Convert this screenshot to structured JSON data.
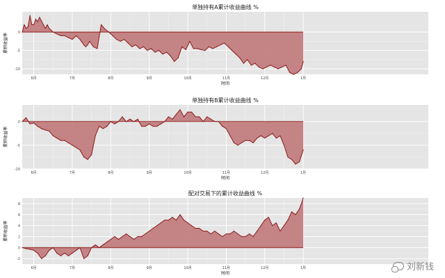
{
  "chart_data": [
    {
      "type": "area",
      "title": "单独持有A累计收益曲线 %",
      "xlabel": "时间",
      "ylabel": "累积收益率",
      "ylim": [
        -11.5,
        5.5
      ],
      "yticks": [
        0,
        -5,
        -10
      ],
      "xlim": [
        0,
        10.55
      ],
      "x_ticks": [
        {
          "x": 0.3,
          "label": "6月"
        },
        {
          "x": 1.3,
          "label": "7月"
        },
        {
          "x": 2.3,
          "label": "8月"
        },
        {
          "x": 3.3,
          "label": "9月"
        },
        {
          "x": 4.3,
          "label": "10月"
        },
        {
          "x": 5.3,
          "label": "11月"
        },
        {
          "x": 6.3,
          "label": "12月"
        },
        {
          "x": 7.3,
          "label": "1月"
        }
      ],
      "grid": true,
      "series": [
        {
          "x": [
            0.0,
            0.05,
            0.1,
            0.15,
            0.2,
            0.25,
            0.3,
            0.35,
            0.4,
            0.45,
            0.5,
            0.55,
            0.6,
            0.65,
            0.7,
            0.8,
            0.9,
            1.0,
            1.1,
            1.2,
            1.3,
            1.35,
            1.4,
            1.5,
            1.6,
            1.65,
            1.7,
            1.75,
            1.85,
            1.95,
            2.05,
            2.15,
            2.25,
            2.35,
            2.45,
            2.55,
            2.65,
            2.75,
            2.85,
            2.95,
            3.05,
            3.15,
            3.25,
            3.35,
            3.45,
            3.55,
            3.65,
            3.75,
            3.85,
            3.95,
            4.05,
            4.15,
            4.25,
            4.35,
            4.45,
            4.55,
            4.65,
            4.75,
            4.85,
            4.95,
            5.05,
            5.15,
            5.25,
            5.35,
            5.45,
            5.55,
            5.65,
            5.75,
            5.85,
            5.95,
            6.05,
            6.15,
            6.25,
            6.35,
            6.45,
            6.55,
            6.65,
            6.75,
            6.85,
            6.95,
            7.05,
            7.15,
            7.25,
            7.3
          ],
          "values": [
            0,
            2,
            1,
            1.5,
            4.5,
            2,
            2,
            3.5,
            2.8,
            4,
            3,
            2,
            1,
            2,
            1,
            0,
            -0.5,
            -1,
            -1,
            -1.5,
            -2,
            -1.5,
            -1,
            -2,
            -3.5,
            -4,
            -3.5,
            -2.5,
            -4,
            -4.5,
            2,
            0.8,
            0,
            -1,
            -2,
            -2.5,
            -2,
            -3,
            -4,
            -3.5,
            -4.5,
            -4,
            -5,
            -4.5,
            -5.5,
            -5,
            -6,
            -5.5,
            -6.5,
            -8,
            -7,
            -4,
            -4.8,
            -2.5,
            -4.5,
            -4.5,
            -4.8,
            -5,
            -4,
            -4.5,
            -4,
            -3.5,
            -3,
            -4,
            -5,
            -6,
            -7,
            -8.5,
            -7.5,
            -9,
            -8.5,
            -9.5,
            -10,
            -9.5,
            -9,
            -9.5,
            -10,
            -9.5,
            -9,
            -11,
            -11.5,
            -11,
            -10,
            -8
          ]
        }
      ]
    },
    {
      "type": "area",
      "title": "单独持有B累计收益曲线 %",
      "xlabel": "时间",
      "ylabel": "累积收益率",
      "ylim": [
        -10,
        3.5
      ],
      "yticks": [
        0,
        -5,
        -10
      ],
      "xlim": [
        0,
        10.55
      ],
      "x_ticks": [
        {
          "x": 0.3,
          "label": "6月"
        },
        {
          "x": 1.3,
          "label": "7月"
        },
        {
          "x": 2.3,
          "label": "8月"
        },
        {
          "x": 3.3,
          "label": "9月"
        },
        {
          "x": 4.3,
          "label": "10月"
        },
        {
          "x": 5.3,
          "label": "11月"
        },
        {
          "x": 6.3,
          "label": "12月"
        },
        {
          "x": 7.3,
          "label": "1月"
        }
      ],
      "grid": true,
      "series": [
        {
          "x": [
            0.0,
            0.1,
            0.2,
            0.3,
            0.4,
            0.5,
            0.6,
            0.7,
            0.8,
            0.9,
            1.0,
            1.1,
            1.2,
            1.3,
            1.4,
            1.5,
            1.6,
            1.7,
            1.8,
            1.9,
            1.95,
            2.0,
            2.1,
            2.2,
            2.3,
            2.4,
            2.5,
            2.6,
            2.7,
            2.8,
            2.9,
            3.0,
            3.1,
            3.2,
            3.3,
            3.4,
            3.5,
            3.6,
            3.7,
            3.8,
            3.9,
            4.0,
            4.1,
            4.2,
            4.3,
            4.4,
            4.5,
            4.6,
            4.7,
            4.8,
            4.9,
            5.0,
            5.1,
            5.2,
            5.3,
            5.4,
            5.5,
            5.6,
            5.7,
            5.8,
            5.9,
            6.0,
            6.1,
            6.2,
            6.3,
            6.4,
            6.5,
            6.6,
            6.7,
            6.8,
            6.9,
            7.0,
            7.1,
            7.2,
            7.3
          ],
          "values": [
            0,
            0.8,
            -0.5,
            -0.3,
            -1,
            -1.5,
            -1.8,
            -2,
            -3,
            -3.5,
            -4,
            -4,
            -4.5,
            -5,
            -5.5,
            -6,
            -7.5,
            -8,
            -7,
            -3,
            -2,
            -1,
            -1.5,
            -1,
            0,
            -0.5,
            0,
            1,
            0,
            0.5,
            0,
            0.5,
            -1,
            -1,
            -0.5,
            -1,
            -1,
            -0.5,
            0,
            1,
            0.5,
            1.5,
            2.5,
            1,
            2,
            2,
            1,
            1,
            0,
            1,
            0.5,
            0,
            0,
            -1,
            -1.5,
            -3,
            -4.5,
            -5,
            -4.5,
            -4,
            -4,
            -4.5,
            -3.5,
            -3,
            -3.5,
            -3,
            -2.5,
            -3.5,
            -3,
            -5,
            -7.5,
            -8,
            -9,
            -8.5,
            -6
          ]
        }
      ]
    },
    {
      "type": "area",
      "title": "配对交易下的累计收益曲线 %",
      "xlabel": "时间",
      "ylabel": "累积收益率",
      "ylim": [
        -3,
        9
      ],
      "yticks": [
        8,
        6,
        4,
        2,
        0,
        -2
      ],
      "xlim": [
        0,
        10.55
      ],
      "x_ticks": [
        {
          "x": 0.3,
          "label": "6月"
        },
        {
          "x": 1.3,
          "label": "7月"
        },
        {
          "x": 2.3,
          "label": "8月"
        },
        {
          "x": 3.3,
          "label": "9月"
        },
        {
          "x": 4.3,
          "label": "10月"
        },
        {
          "x": 5.3,
          "label": "11月"
        },
        {
          "x": 6.3,
          "label": "12月"
        },
        {
          "x": 7.3,
          "label": "1月"
        }
      ],
      "grid": true,
      "series": [
        {
          "x": [
            0.0,
            0.1,
            0.2,
            0.3,
            0.4,
            0.5,
            0.6,
            0.7,
            0.8,
            0.9,
            1.0,
            1.1,
            1.2,
            1.3,
            1.4,
            1.5,
            1.6,
            1.7,
            1.8,
            1.9,
            2.0,
            2.1,
            2.2,
            2.3,
            2.4,
            2.5,
            2.6,
            2.7,
            2.8,
            2.9,
            3.0,
            3.1,
            3.2,
            3.3,
            3.4,
            3.5,
            3.6,
            3.7,
            3.8,
            3.9,
            4.0,
            4.1,
            4.2,
            4.3,
            4.4,
            4.5,
            4.6,
            4.7,
            4.8,
            4.9,
            5.0,
            5.1,
            5.2,
            5.3,
            5.4,
            5.5,
            5.6,
            5.7,
            5.8,
            5.9,
            6.0,
            6.1,
            6.2,
            6.3,
            6.4,
            6.5,
            6.6,
            6.7,
            6.8,
            6.9,
            7.0,
            7.1,
            7.2,
            7.3
          ],
          "values": [
            0,
            -0.2,
            -0.3,
            -0.5,
            -1,
            -2,
            -1.5,
            -0.5,
            0,
            -1,
            -1.5,
            -1,
            -1.5,
            -1,
            -0.5,
            0,
            -2,
            -1.5,
            0,
            0.5,
            0,
            0.5,
            1,
            1.5,
            2,
            1.5,
            2,
            2.5,
            2,
            1.5,
            2,
            2,
            2.5,
            3,
            3.5,
            4,
            4.5,
            5,
            5,
            5.5,
            5,
            6,
            5,
            4.5,
            4,
            3.5,
            3.5,
            3,
            3,
            2.5,
            3,
            2.5,
            2,
            2.5,
            2.5,
            3,
            2.5,
            2,
            2,
            2.5,
            2,
            3,
            4,
            5,
            5.5,
            4,
            4.5,
            3,
            4,
            5,
            6.5,
            6,
            7,
            9
          ]
        }
      ]
    }
  ],
  "watermark": {
    "text": "刘新钱",
    "icon": "wechat-icon"
  }
}
